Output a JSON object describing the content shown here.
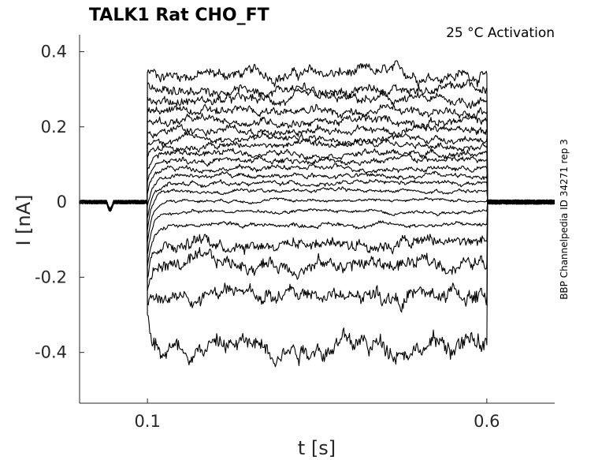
{
  "chart_data": {
    "type": "line",
    "title": "TALK1  Rat  CHO_FT",
    "annotation": "25 °C  Activation",
    "side_label": "BBP Channelpedia ID 34271 rep 3",
    "xlabel": "t [s]",
    "ylabel": "I [nA]",
    "xlim": [
      0.0,
      0.7
    ],
    "ylim": [
      -0.535,
      0.445
    ],
    "x_ticks": [
      {
        "value": 0.1,
        "label": "0.1"
      },
      {
        "value": 0.6,
        "label": "0.6"
      }
    ],
    "y_ticks": [
      {
        "value": 0.4,
        "label": "0.4"
      },
      {
        "value": 0.2,
        "label": "0.2"
      },
      {
        "value": 0.0,
        "label": "0"
      },
      {
        "value": -0.2,
        "label": "-0.2"
      },
      {
        "value": -0.4,
        "label": "-0.4"
      }
    ],
    "grid": false,
    "pulse": {
      "start": 0.1,
      "end": 0.6
    },
    "series_steady_levels_nA": [
      0.34,
      0.3,
      0.27,
      0.24,
      0.215,
      0.19,
      0.17,
      0.15,
      0.13,
      0.11,
      0.09,
      0.07,
      0.05,
      0.03,
      0.005,
      -0.025,
      -0.06,
      -0.105,
      -0.165,
      -0.25,
      -0.38
    ],
    "onset_peak_nA": [
      0.345,
      -0.3
    ]
  }
}
